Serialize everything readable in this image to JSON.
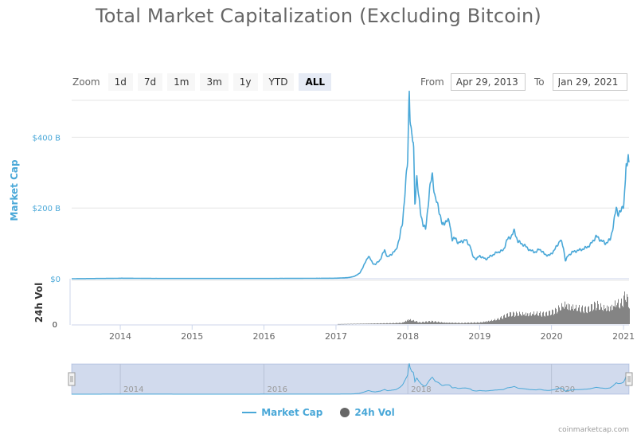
{
  "chart_data": {
    "type": "area",
    "title": "Total Market Capitalization (Excluding Bitcoin)",
    "zoom": {
      "label": "Zoom",
      "buttons": [
        "1d",
        "7d",
        "1m",
        "3m",
        "1y",
        "YTD",
        "ALL"
      ],
      "active": "ALL"
    },
    "range": {
      "from_label": "From",
      "from": "Apr 29, 2013",
      "to_label": "To",
      "to": "Jan 29, 2021"
    },
    "x_range": [
      "2013-04-29",
      "2021-01-29"
    ],
    "x_ticks": [
      "2014",
      "2015",
      "2016",
      "2017",
      "2018",
      "2019",
      "2020",
      "2021"
    ],
    "navigator_ticks": [
      "2014",
      "2016",
      "2018",
      "2020"
    ],
    "credit": "coinmarketcap.com",
    "colors": {
      "market_cap": "#4aa8d8",
      "volume": "#666666"
    },
    "series": [
      {
        "name": "Market Cap",
        "axis_title": "Market Cap",
        "unit": "B",
        "ylim": [
          0,
          500
        ],
        "y_ticks": [
          "$0",
          "$200 B",
          "$400 B"
        ],
        "y_tick_values": [
          0,
          200,
          400
        ],
        "points": [
          [
            "2013-04-29",
            0
          ],
          [
            "2013-12-01",
            1
          ],
          [
            "2014-01-10",
            1.5
          ],
          [
            "2014-06-01",
            0.8
          ],
          [
            "2015-01-01",
            0.6
          ],
          [
            "2016-01-01",
            0.7
          ],
          [
            "2016-06-15",
            0.9
          ],
          [
            "2017-01-01",
            1.5
          ],
          [
            "2017-03-01",
            3
          ],
          [
            "2017-04-01",
            6
          ],
          [
            "2017-05-01",
            15
          ],
          [
            "2017-05-25",
            40
          ],
          [
            "2017-06-15",
            65
          ],
          [
            "2017-07-05",
            45
          ],
          [
            "2017-07-20",
            40
          ],
          [
            "2017-08-15",
            55
          ],
          [
            "2017-09-05",
            82
          ],
          [
            "2017-09-20",
            60
          ],
          [
            "2017-10-10",
            70
          ],
          [
            "2017-11-01",
            80
          ],
          [
            "2017-11-20",
            115
          ],
          [
            "2017-12-05",
            160
          ],
          [
            "2017-12-20",
            260
          ],
          [
            "2017-12-31",
            330
          ],
          [
            "2018-01-05",
            460
          ],
          [
            "2018-01-08",
            545
          ],
          [
            "2018-01-12",
            470
          ],
          [
            "2018-01-20",
            400
          ],
          [
            "2018-01-30",
            380
          ],
          [
            "2018-02-06",
            210
          ],
          [
            "2018-02-15",
            290
          ],
          [
            "2018-02-25",
            230
          ],
          [
            "2018-03-10",
            180
          ],
          [
            "2018-03-20",
            150
          ],
          [
            "2018-04-01",
            140
          ],
          [
            "2018-04-20",
            240
          ],
          [
            "2018-05-05",
            300
          ],
          [
            "2018-05-20",
            225
          ],
          [
            "2018-06-05",
            205
          ],
          [
            "2018-06-25",
            150
          ],
          [
            "2018-07-15",
            165
          ],
          [
            "2018-08-01",
            160
          ],
          [
            "2018-08-15",
            110
          ],
          [
            "2018-09-01",
            115
          ],
          [
            "2018-09-15",
            100
          ],
          [
            "2018-10-01",
            105
          ],
          [
            "2018-10-20",
            110
          ],
          [
            "2018-11-15",
            92
          ],
          [
            "2018-11-25",
            65
          ],
          [
            "2018-12-15",
            55
          ],
          [
            "2019-01-01",
            65
          ],
          [
            "2019-02-01",
            55
          ],
          [
            "2019-03-01",
            65
          ],
          [
            "2019-04-01",
            75
          ],
          [
            "2019-05-01",
            80
          ],
          [
            "2019-05-20",
            110
          ],
          [
            "2019-06-10",
            120
          ],
          [
            "2019-06-26",
            135
          ],
          [
            "2019-07-15",
            105
          ],
          [
            "2019-08-15",
            95
          ],
          [
            "2019-09-15",
            80
          ],
          [
            "2019-10-15",
            75
          ],
          [
            "2019-11-01",
            85
          ],
          [
            "2019-11-25",
            70
          ],
          [
            "2019-12-20",
            65
          ],
          [
            "2020-01-15",
            80
          ],
          [
            "2020-02-15",
            110
          ],
          [
            "2020-03-01",
            90
          ],
          [
            "2020-03-12",
            50
          ],
          [
            "2020-03-25",
            65
          ],
          [
            "2020-04-15",
            75
          ],
          [
            "2020-05-15",
            80
          ],
          [
            "2020-06-15",
            85
          ],
          [
            "2020-07-15",
            95
          ],
          [
            "2020-08-15",
            120
          ],
          [
            "2020-09-05",
            110
          ],
          [
            "2020-10-01",
            100
          ],
          [
            "2020-10-25",
            110
          ],
          [
            "2020-11-10",
            150
          ],
          [
            "2020-11-25",
            200
          ],
          [
            "2020-12-05",
            185
          ],
          [
            "2020-12-20",
            190
          ],
          [
            "2021-01-01",
            210
          ],
          [
            "2021-01-10",
            270
          ],
          [
            "2021-01-14",
            330
          ],
          [
            "2021-01-20",
            300
          ],
          [
            "2021-01-25",
            355
          ],
          [
            "2021-01-29",
            340
          ]
        ]
      },
      {
        "name": "24h Vol",
        "axis_title": "24h Vol",
        "unit": "B",
        "ylim": [
          0,
          120
        ],
        "y_ticks": [
          "0"
        ],
        "y_tick_values": [
          0
        ],
        "points": [
          [
            "2013-04-29",
            0
          ],
          [
            "2016-12-31",
            0.2
          ],
          [
            "2017-06-01",
            2
          ],
          [
            "2017-10-01",
            3
          ],
          [
            "2017-12-01",
            5
          ],
          [
            "2018-01-05",
            18
          ],
          [
            "2018-02-01",
            12
          ],
          [
            "2018-03-01",
            6
          ],
          [
            "2018-05-01",
            10
          ],
          [
            "2018-07-01",
            6
          ],
          [
            "2018-10-01",
            4
          ],
          [
            "2019-01-01",
            6
          ],
          [
            "2019-04-01",
            18
          ],
          [
            "2019-06-01",
            35
          ],
          [
            "2019-08-01",
            38
          ],
          [
            "2019-10-01",
            40
          ],
          [
            "2019-12-01",
            35
          ],
          [
            "2020-01-15",
            45
          ],
          [
            "2020-03-10",
            75
          ],
          [
            "2020-05-01",
            60
          ],
          [
            "2020-07-01",
            50
          ],
          [
            "2020-08-15",
            70
          ],
          [
            "2020-09-15",
            60
          ],
          [
            "2020-11-01",
            65
          ],
          [
            "2020-11-25",
            80
          ],
          [
            "2020-12-15",
            70
          ],
          [
            "2021-01-05",
            95
          ],
          [
            "2021-01-11",
            110
          ],
          [
            "2021-01-20",
            80
          ],
          [
            "2021-01-29",
            70
          ]
        ]
      }
    ]
  }
}
